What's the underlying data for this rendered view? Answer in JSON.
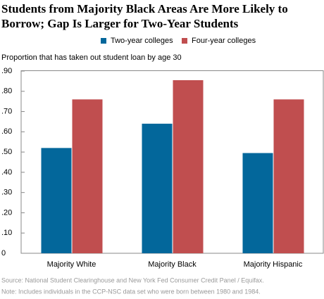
{
  "chart_data": {
    "type": "bar",
    "title": [
      "Students from Majority Black Areas Are More Likely to",
      "Borrow; Gap Is Larger for Two-Year Students"
    ],
    "y_label": "Proportion that has taken out student loan by age 30",
    "categories": [
      "Majority White",
      "Majority Black",
      "Majority Hispanic"
    ],
    "series": [
      {
        "name": "Two-year colleges",
        "color": "#03679b",
        "values": [
          0.52,
          0.64,
          0.495
        ]
      },
      {
        "name": "Four-year colleges",
        "color": "#c04e4f",
        "values": [
          0.76,
          0.855,
          0.76
        ]
      }
    ],
    "ylim": [
      0,
      0.9
    ],
    "yticks": [
      0,
      {
        "value": 0.1,
        "label": ".10"
      },
      {
        "value": 0.2,
        "label": ".20"
      },
      {
        "value": 0.3,
        "label": ".30"
      },
      {
        "value": 0.4,
        "label": ".40"
      },
      {
        "value": 0.5,
        "label": ".50"
      },
      {
        "value": 0.6,
        "label": ".60"
      },
      {
        "value": 0.7,
        "label": ".70"
      },
      {
        "value": 0.8,
        "label": ".80"
      },
      {
        "value": 0.9,
        "label": ".90"
      }
    ],
    "notes": [
      "Source: National Student Clearinghouse and New York Fed Consumer Credit Panel / Equifax.",
      "Note: Includes individuals in the CCP-NSC data set who were born between 1980 and 1984."
    ]
  }
}
